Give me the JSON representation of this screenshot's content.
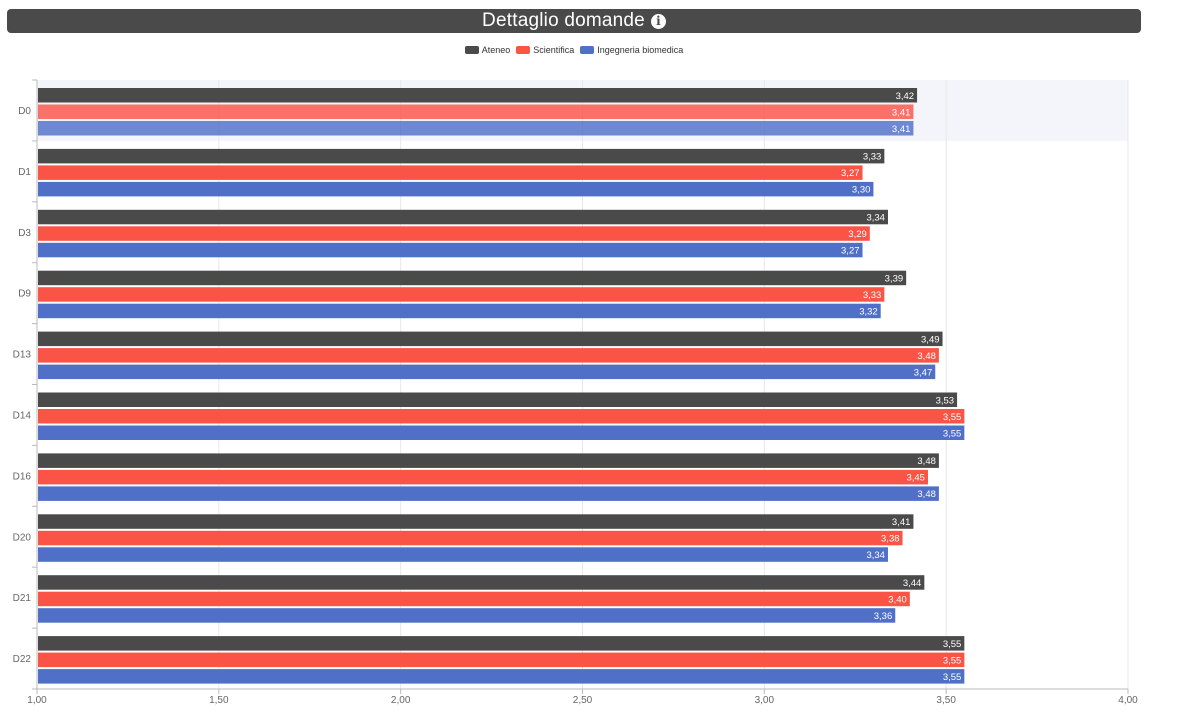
{
  "header": {
    "title": "Dettaglio domande",
    "info_icon": "info-circle-icon"
  },
  "colors": {
    "header_bg": "#4a4a4a",
    "Ateneo": "#4a4a4a",
    "Scientifica": "#fa5446",
    "Ingegneria biomedica": "#5070c8",
    "highlight_bg": "#f3f5fb"
  },
  "chart_data": {
    "type": "bar",
    "orientation": "horizontal",
    "categories": [
      "D0",
      "D1",
      "D3",
      "D9",
      "D13",
      "D14",
      "D16",
      "D20",
      "D21",
      "D22"
    ],
    "series": [
      {
        "name": "Ateneo",
        "color": "#4a4a4a",
        "values": [
          3.42,
          3.33,
          3.34,
          3.39,
          3.49,
          3.53,
          3.48,
          3.41,
          3.44,
          3.55
        ],
        "labels": [
          "3,42",
          "3,33",
          "3,34",
          "3,39",
          "3,49",
          "3,53",
          "3,48",
          "3,41",
          "3,44",
          "3,55"
        ]
      },
      {
        "name": "Scientifica",
        "color": "#fa5446",
        "values": [
          3.41,
          3.27,
          3.29,
          3.33,
          3.48,
          3.55,
          3.45,
          3.38,
          3.4,
          3.55
        ],
        "labels": [
          "3,41",
          "3,27",
          "3,29",
          "3,33",
          "3,48",
          "3,55",
          "3,45",
          "3,38",
          "3,40",
          "3,55"
        ]
      },
      {
        "name": "Ingegneria biomedica",
        "color": "#5070c8",
        "values": [
          3.41,
          3.3,
          3.27,
          3.32,
          3.47,
          3.55,
          3.48,
          3.34,
          3.36,
          3.55
        ],
        "labels": [
          "3,41",
          "3,30",
          "3,27",
          "3,32",
          "3,47",
          "3,55",
          "3,48",
          "3,34",
          "3,36",
          "3,55"
        ]
      }
    ],
    "xlim": [
      1.0,
      4.0
    ],
    "xticks": [
      1.0,
      1.5,
      2.0,
      2.5,
      3.0,
      3.5,
      4.0
    ],
    "xtick_labels": [
      "1,00",
      "1,50",
      "2,00",
      "2,50",
      "3,00",
      "3,50",
      "4,00"
    ],
    "grid": true,
    "legend_position": "top-center",
    "highlighted_category": "D0"
  }
}
